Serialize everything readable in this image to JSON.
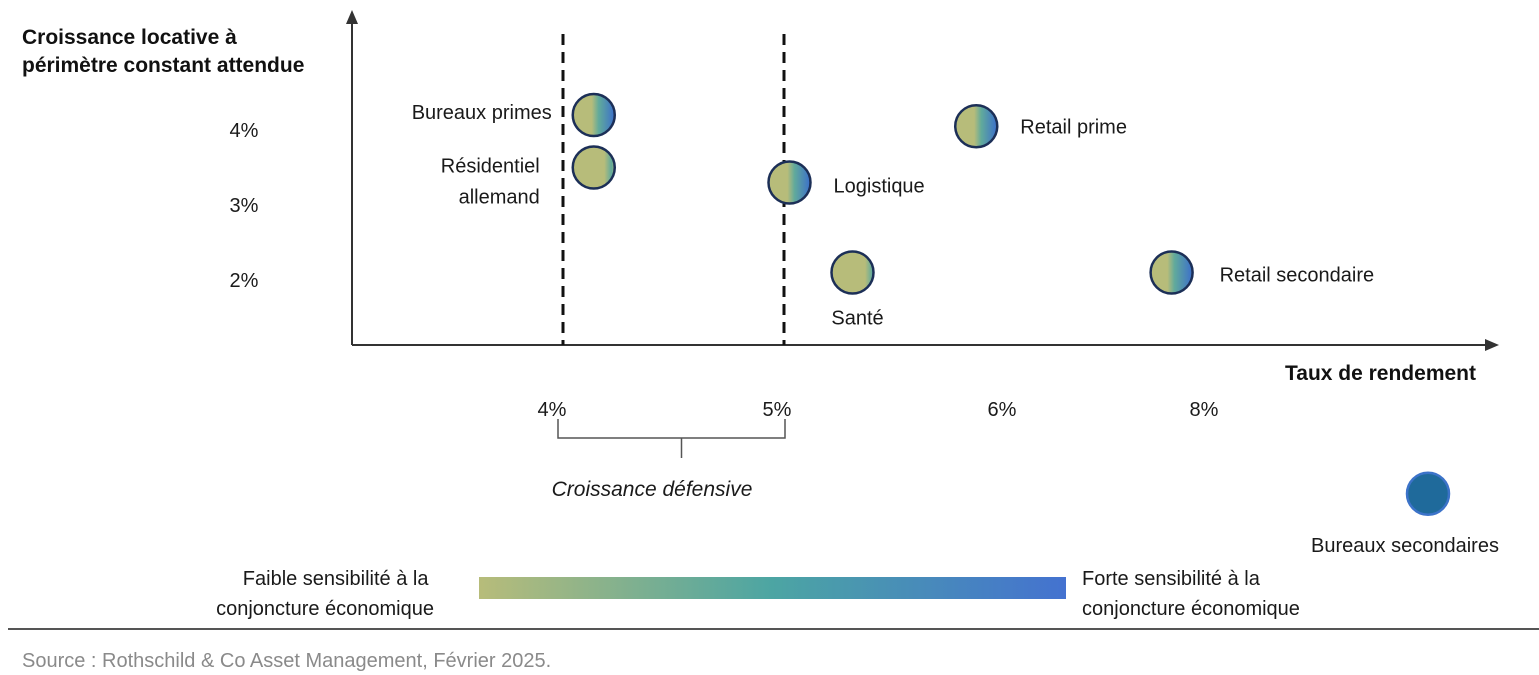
{
  "chart_data": {
    "type": "scatter",
    "ylabel_lines": [
      "Croissance locative à",
      "périmètre constant attendue"
    ],
    "xlabel": "Taux de rendement",
    "y_ticks": [
      {
        "value": 4,
        "label": "4%"
      },
      {
        "value": 3,
        "label": "3%"
      },
      {
        "value": 2,
        "label": "2%"
      }
    ],
    "x_ticks": [
      {
        "value": 4,
        "label": "4%"
      },
      {
        "value": 5,
        "label": "5%"
      },
      {
        "value": 6,
        "label": "6%"
      },
      {
        "value": 8,
        "label": "8%"
      }
    ],
    "points": [
      {
        "name": "Bureaux primes",
        "x": 4.15,
        "y": 4.2,
        "sensitivity": 0.5
      },
      {
        "name": "Résidentiel allemand",
        "x": 4.15,
        "y": 3.5,
        "sensitivity": 0.2
      },
      {
        "name": "Logistique",
        "x": 5.02,
        "y": 3.3,
        "sensitivity": 0.5
      },
      {
        "name": "Santé",
        "x": 5.3,
        "y": 2.1,
        "sensitivity": 0.15
      },
      {
        "name": "Retail prime",
        "x": 5.85,
        "y": 4.05,
        "sensitivity": 0.5
      },
      {
        "name": "Retail secondaire",
        "x": 7.6,
        "y": 2.1,
        "sensitivity": 0.55
      },
      {
        "name": "Bureaux secondaires",
        "x": 9.2,
        "y": -0.85,
        "sensitivity": 1.0
      }
    ],
    "defensive_range": {
      "from": 4,
      "to": 5,
      "label": "Croissance défensive"
    },
    "sensitivity_scale": {
      "low_label_lines": [
        "Faible sensibilité à la",
        "conjoncture économique"
      ],
      "high_label_lines": [
        "Forte sensibilité à la",
        "conjoncture économique"
      ],
      "low_color": "#b7bc7a",
      "mid_color": "#4ca5a3",
      "high_color": "#4472d0"
    }
  },
  "source": "Source : Rothschild & Co Asset Management, Février 2025.",
  "colors": {
    "point_fill_low": "#b7bc7a",
    "point_fill_high": "#3b6fcb",
    "point_fill_darkest": "#1f6a9b",
    "point_stroke": "#1c2f57",
    "axis": "#333333"
  }
}
